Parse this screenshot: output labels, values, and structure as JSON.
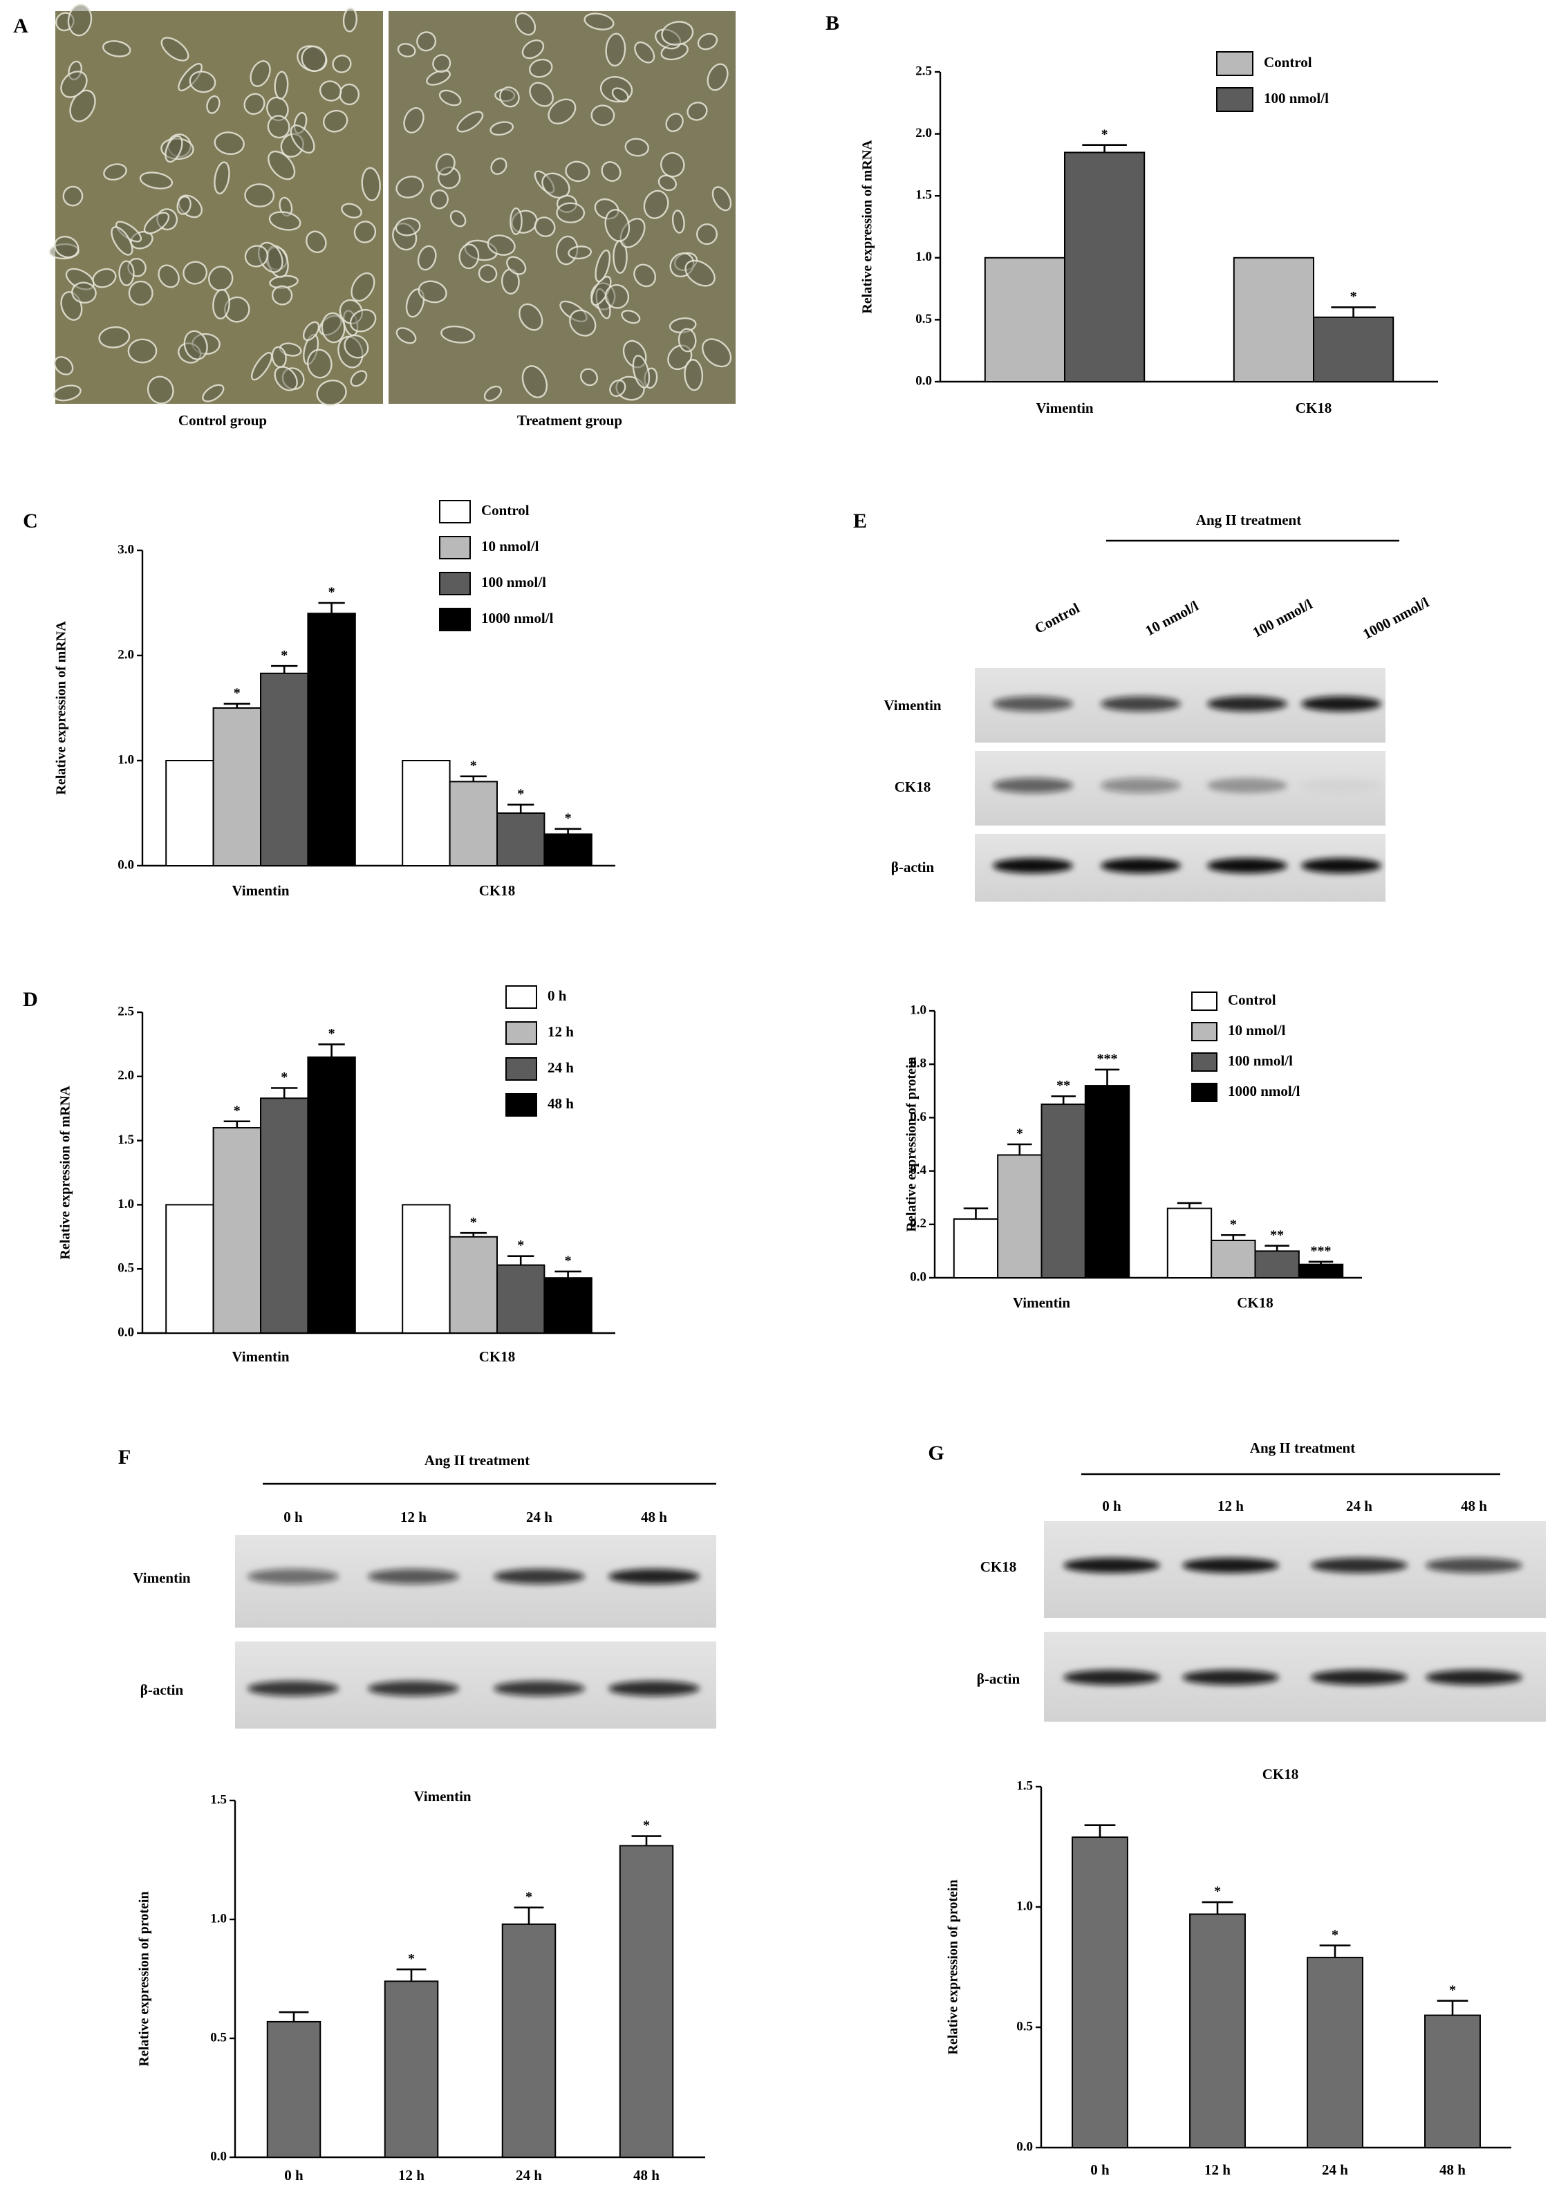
{
  "panel_labels": [
    "A",
    "B",
    "C",
    "D",
    "E",
    "F",
    "G"
  ],
  "micrographs": {
    "labels": [
      "Control group",
      "Treatment group"
    ]
  },
  "blots": [
    {
      "title": "Ang II treatment",
      "lanes": [
        "Control",
        "10 nmol/l",
        "100 nmol/l",
        "1000 nmol/l"
      ],
      "rows": [
        "Vimentin",
        "CK18",
        "β-actin"
      ]
    },
    {
      "title": "Ang II treatment",
      "lanes": [
        "0 h",
        "12 h",
        "24 h",
        "48 h"
      ],
      "rows": [
        "Vimentin",
        "β-actin"
      ]
    },
    {
      "title": "Ang II treatment",
      "lanes": [
        "0 h",
        "12 h",
        "24 h",
        "48 h"
      ],
      "rows": [
        "CK18",
        "β-actin"
      ]
    }
  ],
  "chart_data": [
    {
      "type": "bar",
      "ylabel": "Relative expression of mRNA",
      "categories": [
        "Vimentin",
        "CK18"
      ],
      "series": [
        {
          "name": "Control",
          "color": "#b9b9b9",
          "values": [
            1.0,
            1.0
          ],
          "errors": [
            0,
            0
          ],
          "annotations": [
            null,
            null
          ]
        },
        {
          "name": "100 nmol/l",
          "color": "#5c5c5c",
          "values": [
            1.85,
            0.52
          ],
          "errors": [
            0.06,
            0.08
          ],
          "annotations": [
            "*",
            "*"
          ]
        }
      ],
      "ylim": [
        0,
        2.5
      ],
      "yticks": [
        {
          "value": 0,
          "label": "0.0"
        },
        0.5,
        {
          "value": 1,
          "label": "1.0"
        },
        1.5,
        {
          "value": 2,
          "label": "2.0"
        },
        2.5
      ]
    },
    {
      "type": "bar",
      "ylabel": "Relative expression of mRNA",
      "categories": [
        "Vimentin",
        "CK18"
      ],
      "series": [
        {
          "name": "Control",
          "color": "#ffffff",
          "values": [
            1.0,
            1.0
          ],
          "errors": [
            0,
            0
          ],
          "annotations": [
            null,
            null
          ]
        },
        {
          "name": "10 nmol/l",
          "color": "#b9b9b9",
          "values": [
            1.5,
            0.8
          ],
          "errors": [
            0.04,
            0.05
          ],
          "annotations": [
            "*",
            "*"
          ]
        },
        {
          "name": "100 nmol/l",
          "color": "#5c5c5c",
          "values": [
            1.83,
            0.5
          ],
          "errors": [
            0.07,
            0.08
          ],
          "annotations": [
            "*",
            "*"
          ]
        },
        {
          "name": "1000 nmol/l",
          "color": "#000000",
          "values": [
            2.4,
            0.3
          ],
          "errors": [
            0.1,
            0.05
          ],
          "annotations": [
            "*",
            "*"
          ]
        }
      ],
      "ylim": [
        0,
        3
      ],
      "yticks": [
        {
          "value": 0,
          "label": "0.0"
        },
        {
          "value": 1,
          "label": "1.0"
        },
        {
          "value": 2,
          "label": "2.0"
        },
        {
          "value": 3,
          "label": "3.0"
        }
      ]
    },
    {
      "type": "bar",
      "ylabel": "Relative expression of mRNA",
      "categories": [
        "Vimentin",
        "CK18"
      ],
      "series": [
        {
          "name": "0 h",
          "color": "#ffffff",
          "values": [
            1.0,
            1.0
          ],
          "errors": [
            0,
            0
          ],
          "annotations": [
            null,
            null
          ]
        },
        {
          "name": "12 h",
          "color": "#b9b9b9",
          "values": [
            1.6,
            0.75
          ],
          "errors": [
            0.05,
            0.03
          ],
          "annotations": [
            "*",
            "*"
          ]
        },
        {
          "name": "24 h",
          "color": "#5c5c5c",
          "values": [
            1.83,
            0.53
          ],
          "errors": [
            0.08,
            0.07
          ],
          "annotations": [
            "*",
            "*"
          ]
        },
        {
          "name": "48 h",
          "color": "#000000",
          "values": [
            2.15,
            0.43
          ],
          "errors": [
            0.1,
            0.05
          ],
          "annotations": [
            "*",
            "*"
          ]
        }
      ],
      "ylim": [
        0,
        2.5
      ],
      "yticks": [
        {
          "value": 0,
          "label": "0.0"
        },
        0.5,
        {
          "value": 1,
          "label": "1.0"
        },
        1.5,
        {
          "value": 2,
          "label": "2.0"
        },
        2.5
      ]
    },
    {
      "type": "bar",
      "ylabel": "Relative expression of protein",
      "categories": [
        "Vimentin",
        "CK18"
      ],
      "series": [
        {
          "name": "Control",
          "color": "#ffffff",
          "values": [
            0.22,
            0.26
          ],
          "errors": [
            0.04,
            0.02
          ],
          "annotations": [
            null,
            null
          ]
        },
        {
          "name": "10 nmol/l",
          "color": "#b9b9b9",
          "values": [
            0.46,
            0.14
          ],
          "errors": [
            0.04,
            0.02
          ],
          "annotations": [
            "*",
            "*"
          ]
        },
        {
          "name": "100 nmol/l",
          "color": "#5c5c5c",
          "values": [
            0.65,
            0.1
          ],
          "errors": [
            0.03,
            0.02
          ],
          "annotations": [
            "**",
            "**"
          ]
        },
        {
          "name": "1000 nmol/l",
          "color": "#000000",
          "values": [
            0.72,
            0.05
          ],
          "errors": [
            0.06,
            0.01
          ],
          "annotations": [
            "***",
            "***"
          ]
        }
      ],
      "ylim": [
        0,
        1
      ],
      "yticks": [
        {
          "value": 0,
          "label": "0.0"
        },
        0.2,
        0.4,
        0.6,
        0.8,
        {
          "value": 1,
          "label": "1.0"
        }
      ]
    },
    {
      "type": "bar",
      "title": "Vimentin",
      "ylabel": "Relative expression of protein",
      "categories": [
        "0 h",
        "12 h",
        "24 h",
        "48 h"
      ],
      "color": "#6e6e6e",
      "values": [
        0.57,
        0.74,
        0.98,
        1.31
      ],
      "errors": [
        0.04,
        0.05,
        0.07,
        0.04
      ],
      "annotations": [
        null,
        "*",
        "*",
        "*"
      ],
      "ylim": [
        0,
        1.5
      ],
      "yticks": [
        {
          "value": 0,
          "label": "0.0"
        },
        0.5,
        {
          "value": 1,
          "label": "1.0"
        },
        1.5
      ]
    },
    {
      "type": "bar",
      "title": "CK18",
      "ylabel": "Relative expression of protein",
      "categories": [
        "0 h",
        "12 h",
        "24 h",
        "48 h"
      ],
      "color": "#6e6e6e",
      "values": [
        1.29,
        0.97,
        0.79,
        0.55
      ],
      "errors": [
        0.05,
        0.05,
        0.05,
        0.06
      ],
      "annotations": [
        null,
        "*",
        "*",
        "*"
      ],
      "ylim": [
        0,
        1.5
      ],
      "yticks": [
        {
          "value": 0,
          "label": "0.0"
        },
        0.5,
        {
          "value": 1,
          "label": "1.0"
        },
        1.5
      ]
    }
  ]
}
